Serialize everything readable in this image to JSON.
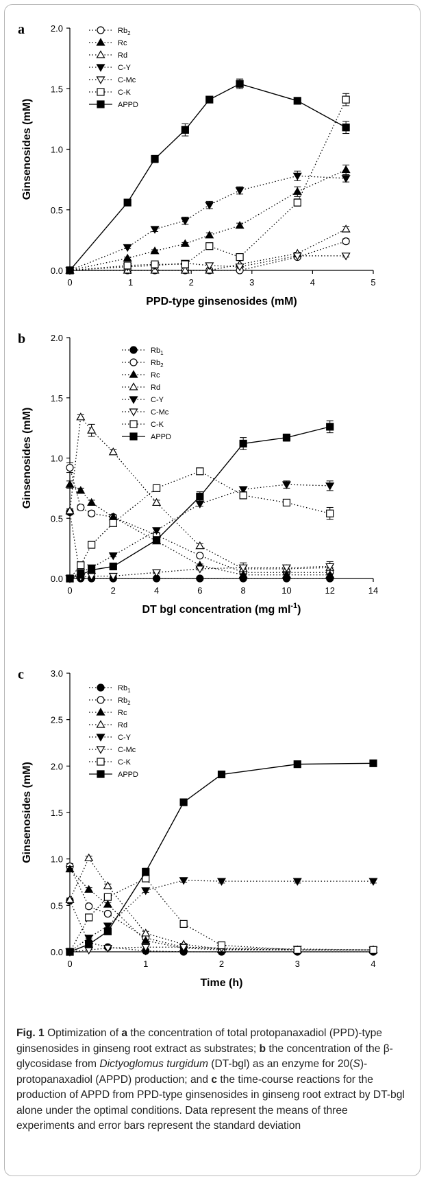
{
  "caption": {
    "label": "Fig. 1",
    "part1": "  Optimization of ",
    "a": "a",
    "part2": " the concentration of total protopanaxadiol (PPD)-type ginsenosides in ginseng root extract as substrates; ",
    "b": "b",
    "part3": " the concentration of the β-glycosidase from ",
    "species": "Dictyoglomus turgidum",
    "part4": " (DT-bgl) as an enzyme for 20(",
    "s_italic": "S",
    "part5": ")-protopanaxadiol (APPD) production; and ",
    "c": "c",
    "part6": " the time-course reactions for the production of APPD from PPD-type ginsenosides in ginseng root extract by DT-bgl alone under the optimal conditions. Data represent the means of three experiments and error bars represent the standard deviation"
  },
  "chart_data": [
    {
      "panel_label": "a",
      "type": "line",
      "xlabel": "PPD-type ginsenosides (mM)",
      "ylabel": "Ginsenosides (mM)",
      "xlim": [
        0,
        5
      ],
      "ylim": [
        0,
        2.0
      ],
      "x_ticks": [
        "0",
        "1",
        "2",
        "3",
        "4",
        "5"
      ],
      "y_ticks": [
        "0.0",
        "0.5",
        "1.0",
        "1.5",
        "2.0"
      ],
      "legend_position": "top-left",
      "series": [
        {
          "name": "Rb2",
          "marker": "circle-open",
          "line": "dotted",
          "x": [
            0,
            0.95,
            1.4,
            1.9,
            2.3,
            2.8,
            3.75,
            4.55
          ],
          "y": [
            0,
            0,
            0,
            0,
            0,
            0,
            0.11,
            0.24
          ],
          "err": [
            0,
            0,
            0,
            0,
            0,
            0,
            0.01,
            0.02
          ]
        },
        {
          "name": "Rc",
          "marker": "triangle-filled",
          "line": "dotted",
          "x": [
            0,
            0.95,
            1.4,
            1.9,
            2.3,
            2.8,
            3.75,
            4.55
          ],
          "y": [
            0,
            0.1,
            0.16,
            0.22,
            0.29,
            0.37,
            0.65,
            0.83
          ],
          "err": [
            0,
            0.01,
            0.01,
            0.01,
            0.02,
            0.02,
            0.04,
            0.04
          ]
        },
        {
          "name": "Rd",
          "marker": "triangle-open",
          "line": "dotted",
          "x": [
            0,
            0.95,
            1.4,
            1.9,
            2.3,
            2.8,
            3.75,
            4.55
          ],
          "y": [
            0,
            0,
            0,
            0,
            0,
            0.05,
            0.14,
            0.34
          ],
          "err": [
            0,
            0,
            0,
            0,
            0,
            0,
            0.01,
            0.02
          ]
        },
        {
          "name": "C-Y",
          "marker": "triangledown-filled",
          "line": "dotted",
          "x": [
            0,
            0.95,
            1.4,
            1.9,
            2.3,
            2.8,
            3.75,
            4.55
          ],
          "y": [
            0,
            0.19,
            0.34,
            0.41,
            0.54,
            0.66,
            0.78,
            0.76
          ],
          "err": [
            0,
            0.01,
            0.02,
            0.03,
            0.03,
            0.03,
            0.04,
            0.03
          ]
        },
        {
          "name": "C-Mc",
          "marker": "triangledown-open",
          "line": "dotted",
          "x": [
            0,
            0.95,
            1.4,
            1.9,
            2.3,
            2.8,
            3.75,
            4.55
          ],
          "y": [
            0,
            0.03,
            0.04,
            0.06,
            0.04,
            0.03,
            0.12,
            0.12
          ],
          "err": [
            0,
            0,
            0,
            0.01,
            0,
            0,
            0.01,
            0.01
          ]
        },
        {
          "name": "C-K",
          "marker": "square-open",
          "line": "dotted",
          "x": [
            0,
            0.95,
            1.4,
            1.9,
            2.3,
            2.8,
            3.75,
            4.55
          ],
          "y": [
            0,
            0.04,
            0.05,
            0.05,
            0.2,
            0.11,
            0.56,
            1.41
          ],
          "err": [
            0,
            0,
            0,
            0.01,
            0.02,
            0.01,
            0.03,
            0.05
          ]
        },
        {
          "name": "APPD",
          "marker": "square-filled",
          "line": "solid",
          "x": [
            0,
            0.95,
            1.4,
            1.9,
            2.3,
            2.8,
            3.75,
            4.55
          ],
          "y": [
            0,
            0.56,
            0.92,
            1.16,
            1.41,
            1.54,
            1.4,
            1.18
          ],
          "err": [
            0,
            0.02,
            0.03,
            0.05,
            0.02,
            0.04,
            0.02,
            0.05
          ]
        }
      ]
    },
    {
      "panel_label": "b",
      "type": "line",
      "xlabel": "DT bgl concentration (mg ml",
      "xlabel_sup": "-1",
      "xlabel_end": ")",
      "ylabel": "Ginsenosides (mM)",
      "xlim": [
        0,
        14
      ],
      "ylim": [
        0,
        2.0
      ],
      "x_ticks": [
        "0",
        "2",
        "4",
        "6",
        "8",
        "10",
        "12",
        "14"
      ],
      "y_ticks": [
        "0.0",
        "0.5",
        "1.0",
        "1.5",
        "2.0"
      ],
      "legend_position": "top-center",
      "series": [
        {
          "name": "Rb1",
          "marker": "circle-filled",
          "line": "dotted",
          "x": [
            0,
            0.5,
            1,
            2,
            4,
            6,
            8,
            10,
            12
          ],
          "y": [
            0.55,
            0,
            0,
            0,
            0,
            0,
            0,
            0,
            0
          ],
          "err": [
            0.02,
            0,
            0,
            0,
            0,
            0,
            0,
            0,
            0
          ]
        },
        {
          "name": "Rb2",
          "marker": "circle-open",
          "line": "dotted",
          "x": [
            0,
            0.5,
            1,
            2,
            4,
            6,
            8,
            10,
            12
          ],
          "y": [
            0.92,
            0.59,
            0.54,
            0.51,
            0.36,
            0.19,
            0.05,
            0.05,
            0.05
          ],
          "err": [
            0.04,
            0.02,
            0.02,
            0.02,
            0.02,
            0.01,
            0.01,
            0.01,
            0.01
          ]
        },
        {
          "name": "Rc",
          "marker": "triangle-filled",
          "line": "dotted",
          "x": [
            0,
            0.5,
            1,
            2,
            4,
            6,
            8,
            10,
            12
          ],
          "y": [
            0.78,
            0.73,
            0.63,
            0.51,
            0.31,
            0.11,
            0.03,
            0.03,
            0.03
          ],
          "err": [
            0.03,
            0.02,
            0.02,
            0.02,
            0.02,
            0.01,
            0.01,
            0.01,
            0.01
          ]
        },
        {
          "name": "Rd",
          "marker": "triangle-open",
          "line": "dotted",
          "x": [
            0,
            0.5,
            1,
            2,
            4,
            6,
            8,
            10,
            12
          ],
          "y": [
            0.56,
            1.34,
            1.23,
            1.05,
            0.63,
            0.27,
            0.08,
            0.08,
            0.09
          ],
          "err": [
            0.02,
            0.02,
            0.05,
            0.02,
            0.02,
            0.02,
            0.05,
            0.03,
            0.05
          ]
        },
        {
          "name": "C-Y",
          "marker": "triangledown-filled",
          "line": "dotted",
          "x": [
            0,
            0.5,
            1,
            2,
            4,
            6,
            8,
            10,
            12
          ],
          "y": [
            0,
            0.05,
            0.09,
            0.19,
            0.4,
            0.62,
            0.74,
            0.78,
            0.77
          ],
          "err": [
            0,
            0,
            0.01,
            0.01,
            0.02,
            0.02,
            0.02,
            0.03,
            0.04
          ]
        },
        {
          "name": "C-Mc",
          "marker": "triangledown-open",
          "line": "dotted",
          "x": [
            0,
            0.5,
            1,
            2,
            4,
            6,
            8,
            10,
            12
          ],
          "y": [
            0,
            0.01,
            0.02,
            0.02,
            0.05,
            0.08,
            0.09,
            0.09,
            0.1
          ],
          "err": [
            0,
            0,
            0,
            0,
            0.01,
            0.01,
            0.01,
            0.01,
            0.01
          ]
        },
        {
          "name": "C-K",
          "marker": "square-open",
          "line": "dotted",
          "x": [
            0,
            0.5,
            1,
            2,
            4,
            6,
            8,
            10,
            12
          ],
          "y": [
            0,
            0.11,
            0.28,
            0.46,
            0.75,
            0.89,
            0.69,
            0.63,
            0.54
          ],
          "err": [
            0,
            0.01,
            0.03,
            0.02,
            0.02,
            0.02,
            0.02,
            0.02,
            0.05
          ]
        },
        {
          "name": "APPD",
          "marker": "square-filled",
          "line": "solid",
          "x": [
            0,
            0.5,
            1,
            2,
            4,
            6,
            8,
            10,
            12
          ],
          "y": [
            0,
            0.03,
            0.07,
            0.1,
            0.32,
            0.68,
            1.12,
            1.17,
            1.26
          ],
          "err": [
            0,
            0,
            0.01,
            0.01,
            0.02,
            0.04,
            0.05,
            0.03,
            0.05
          ]
        }
      ]
    },
    {
      "panel_label": "c",
      "type": "line",
      "xlabel": "Time (h)",
      "ylabel": "Ginsenosides (mM)",
      "xlim": [
        0,
        4
      ],
      "ylim": [
        0,
        3.0
      ],
      "x_ticks": [
        "0",
        "1",
        "2",
        "3",
        "4"
      ],
      "y_ticks": [
        "0.0",
        "0.5",
        "1.0",
        "1.5",
        "2.0",
        "2.5",
        "3.0"
      ],
      "legend_position": "top-left",
      "series": [
        {
          "name": "Rb1",
          "marker": "circle-filled",
          "line": "dotted",
          "x": [
            0,
            0.25,
            0.5,
            1,
            1.5,
            2,
            3,
            4
          ],
          "y": [
            0.55,
            0.1,
            0.05,
            0.01,
            0,
            0,
            0,
            0
          ],
          "err": [
            0.02,
            0.01,
            0.01,
            0,
            0,
            0,
            0,
            0
          ]
        },
        {
          "name": "Rb2",
          "marker": "circle-open",
          "line": "dotted",
          "x": [
            0,
            0.25,
            0.5,
            1,
            1.5,
            2,
            3,
            4
          ],
          "y": [
            0.92,
            0.49,
            0.41,
            0.15,
            0.05,
            0.03,
            0.02,
            0.02
          ],
          "err": [
            0.03,
            0.02,
            0.02,
            0.01,
            0.01,
            0,
            0,
            0
          ]
        },
        {
          "name": "Rc",
          "marker": "triangle-filled",
          "line": "dotted",
          "x": [
            0,
            0.25,
            0.5,
            1,
            1.5,
            2,
            3,
            4
          ],
          "y": [
            0.89,
            0.67,
            0.51,
            0.12,
            0.04,
            0.02,
            0.02,
            0.02
          ],
          "err": [
            0.03,
            0.02,
            0.02,
            0.01,
            0,
            0,
            0,
            0
          ]
        },
        {
          "name": "Rd",
          "marker": "triangle-open",
          "line": "dotted",
          "x": [
            0,
            0.25,
            0.5,
            1,
            1.5,
            2,
            3,
            4
          ],
          "y": [
            0.56,
            1.01,
            0.71,
            0.2,
            0.08,
            0.03,
            0.02,
            0.02
          ],
          "err": [
            0.02,
            0.02,
            0.02,
            0.02,
            0.01,
            0,
            0,
            0
          ]
        },
        {
          "name": "C-Y",
          "marker": "triangledown-filled",
          "line": "dotted",
          "x": [
            0,
            0.25,
            0.5,
            1,
            1.5,
            2,
            3,
            4
          ],
          "y": [
            0,
            0.15,
            0.28,
            0.66,
            0.77,
            0.76,
            0.76,
            0.76
          ],
          "err": [
            0,
            0.01,
            0.02,
            0.02,
            0.02,
            0.02,
            0.02,
            0.02
          ]
        },
        {
          "name": "C-Mc",
          "marker": "triangledown-open",
          "line": "dotted",
          "x": [
            0,
            0.25,
            0.5,
            1,
            1.5,
            2,
            3,
            4
          ],
          "y": [
            0,
            0.02,
            0.04,
            0.05,
            0.05,
            0.04,
            0.03,
            0.02
          ],
          "err": [
            0,
            0,
            0,
            0,
            0,
            0,
            0,
            0
          ]
        },
        {
          "name": "C-K",
          "marker": "square-open",
          "line": "dotted",
          "x": [
            0,
            0.25,
            0.5,
            1,
            1.5,
            2,
            3,
            4
          ],
          "y": [
            0,
            0.37,
            0.59,
            0.79,
            0.3,
            0.07,
            0.02,
            0.02
          ],
          "err": [
            0,
            0.02,
            0.02,
            0.03,
            0.02,
            0.01,
            0,
            0
          ]
        },
        {
          "name": "APPD",
          "marker": "square-filled",
          "line": "solid",
          "x": [
            0,
            0.25,
            0.5,
            1,
            1.5,
            2,
            3,
            4
          ],
          "y": [
            0,
            0.08,
            0.22,
            0.86,
            1.61,
            1.91,
            2.02,
            2.03
          ],
          "err": [
            0,
            0.01,
            0.02,
            0.04,
            0.03,
            0.02,
            0.03,
            0.03
          ]
        }
      ]
    }
  ]
}
